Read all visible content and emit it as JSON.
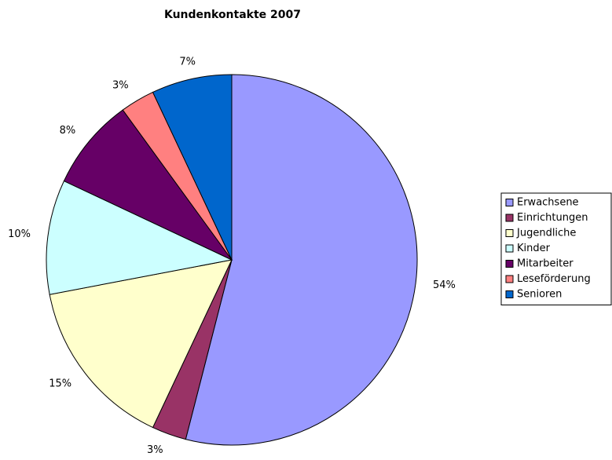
{
  "chart_data": {
    "type": "pie",
    "title": "Kundenkontakte 2007",
    "categories": [
      "Erwachsene",
      "Einrichtungen",
      "Jugendliche",
      "Kinder",
      "Mitarbeiter",
      "Leseförderung",
      "Senioren"
    ],
    "values": [
      54,
      3,
      15,
      10,
      8,
      3,
      7
    ],
    "value_labels": [
      "54%",
      "3%",
      "15%",
      "10%",
      "8%",
      "3%",
      "7%"
    ],
    "colors": [
      "#9999ff",
      "#993366",
      "#ffffcc",
      "#ccffff",
      "#660066",
      "#ff8080",
      "#0066cc"
    ],
    "legend": "right"
  }
}
